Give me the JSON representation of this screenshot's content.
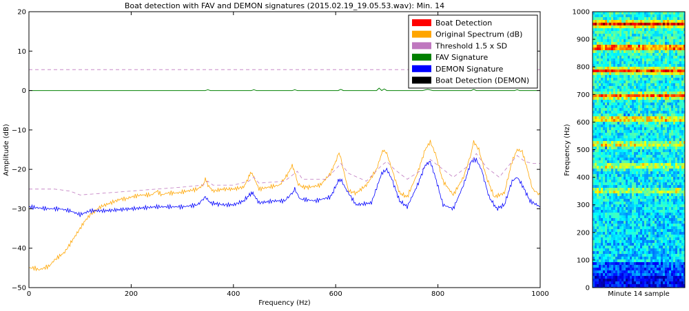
{
  "chart_data": [
    {
      "type": "line",
      "title": "Boat detection with FAV and DEMON signatures (2015.02.19_19.05.53.wav): Min. 14",
      "xlabel": "Frequency (Hz)",
      "ylabel": "Amplitude (dB)",
      "xlim": [
        0,
        1000
      ],
      "ylim": [
        -50,
        20
      ],
      "xticks": [
        0,
        200,
        400,
        600,
        800,
        1000
      ],
      "yticks": [
        -50,
        -40,
        -30,
        -20,
        -10,
        0,
        10,
        20
      ],
      "xtick_labels": [
        "0",
        "200",
        "400",
        "600",
        "800",
        "1000"
      ],
      "ytick_labels": [
        "−50",
        "−40",
        "−30",
        "−20",
        "−10",
        "0",
        "10",
        "20"
      ],
      "legend_position": "top-right",
      "grid": false,
      "legend": [
        {
          "label": "Boat Detection",
          "color": "#ff0000"
        },
        {
          "label": "Original Spectrum (dB)",
          "color": "#ffa500"
        },
        {
          "label": "Threshold 1.5 x SD",
          "color": "#bf77bf"
        },
        {
          "label": "FAV Signature",
          "color": "#008000"
        },
        {
          "label": "DEMON Signature",
          "color": "#0000ff"
        },
        {
          "label": "Boat Detection (DEMON)",
          "color": "#000000"
        }
      ],
      "series": [
        {
          "name": "Original Spectrum (dB)",
          "color": "#ffa500",
          "style": "solid",
          "x": [
            0,
            10,
            20,
            30,
            40,
            50,
            60,
            70,
            80,
            90,
            100,
            110,
            120,
            130,
            140,
            150,
            160,
            170,
            180,
            190,
            200,
            220,
            240,
            250,
            260,
            270,
            290,
            310,
            330,
            340,
            345,
            350,
            360,
            380,
            400,
            420,
            430,
            435,
            440,
            450,
            470,
            490,
            505,
            515,
            520,
            525,
            535,
            550,
            570,
            590,
            600,
            605,
            610,
            615,
            625,
            640,
            660,
            680,
            690,
            695,
            700,
            710,
            725,
            740,
            760,
            775,
            785,
            795,
            810,
            830,
            850,
            865,
            870,
            880,
            895,
            910,
            930,
            945,
            955,
            965,
            975,
            985,
            1000
          ],
          "y": [
            -45,
            -45,
            -45.5,
            -45,
            -44.5,
            -43,
            -42,
            -41,
            -39,
            -37,
            -35,
            -33,
            -31.5,
            -30.5,
            -29.5,
            -29,
            -28.5,
            -28,
            -27.5,
            -27.5,
            -27,
            -26.5,
            -26.5,
            -25.5,
            -26.5,
            -26,
            -26,
            -25.5,
            -25,
            -24,
            -22.5,
            -24,
            -25.5,
            -25,
            -25,
            -24.5,
            -22,
            -20.5,
            -22,
            -25,
            -24.5,
            -24,
            -21.5,
            -19,
            -20.5,
            -23.5,
            -24.5,
            -24.5,
            -24,
            -21,
            -18,
            -16,
            -17,
            -20,
            -25.5,
            -26,
            -24,
            -20,
            -16,
            -15,
            -16,
            -20,
            -26,
            -27,
            -21,
            -15,
            -13,
            -16,
            -23,
            -26.5,
            -22,
            -16,
            -13,
            -15,
            -22,
            -27,
            -26,
            -18,
            -15,
            -15.5,
            -20,
            -25,
            -26.5
          ]
        },
        {
          "name": "Threshold 1.5 x SD",
          "color": "#bf77bf",
          "style": "dashed",
          "x": [
            0,
            50,
            80,
            100,
            150,
            200,
            250,
            300,
            340,
            350,
            360,
            400,
            430,
            440,
            450,
            500,
            515,
            525,
            535,
            580,
            600,
            610,
            625,
            660,
            690,
            700,
            715,
            740,
            770,
            785,
            800,
            830,
            860,
            875,
            895,
            920,
            945,
            955,
            970,
            985,
            1000
          ],
          "y": [
            -25,
            -25,
            -25.5,
            -26.5,
            -26,
            -25.5,
            -25,
            -24.5,
            -24,
            -23,
            -24,
            -24,
            -23,
            -22,
            -23.5,
            -23,
            -21.5,
            -20.5,
            -22.5,
            -22.5,
            -20,
            -18.5,
            -21,
            -23,
            -19,
            -18,
            -20,
            -22.5,
            -20,
            -17.5,
            -19,
            -22,
            -19,
            -16,
            -19.5,
            -22,
            -18,
            -16.5,
            -18,
            -18.5,
            -18.5
          ]
        },
        {
          "name": "Threshold (upper)",
          "color": "#bf77bf",
          "style": "dashed",
          "x": [
            0,
            1000
          ],
          "y": [
            5.3,
            5.3
          ]
        },
        {
          "name": "FAV Signature",
          "color": "#008000",
          "style": "solid",
          "x": [
            0,
            100,
            250,
            345,
            350,
            355,
            435,
            440,
            445,
            515,
            520,
            525,
            605,
            610,
            615,
            680,
            685,
            690,
            695,
            700,
            770,
            780,
            790,
            865,
            870,
            875,
            950,
            955,
            960,
            1000
          ],
          "y": [
            0,
            0,
            0,
            0,
            0.2,
            0,
            0,
            0.2,
            0,
            0,
            0.2,
            0,
            0,
            0.3,
            0,
            0,
            0.6,
            0,
            0.4,
            0,
            0,
            0.3,
            0,
            0,
            0.3,
            0,
            0,
            0.2,
            0,
            0
          ]
        },
        {
          "name": "DEMON Signature",
          "color": "#0000ff",
          "style": "solid",
          "x": [
            0,
            20,
            40,
            60,
            80,
            90,
            100,
            110,
            120,
            150,
            200,
            250,
            300,
            330,
            345,
            355,
            380,
            400,
            420,
            435,
            440,
            450,
            480,
            500,
            515,
            520,
            530,
            560,
            590,
            605,
            610,
            620,
            640,
            670,
            690,
            700,
            710,
            725,
            740,
            760,
            775,
            785,
            795,
            810,
            830,
            850,
            865,
            875,
            885,
            900,
            915,
            930,
            945,
            955,
            965,
            980,
            1000
          ],
          "y": [
            -29.5,
            -29.8,
            -30,
            -30,
            -30.5,
            -31,
            -31.5,
            -31,
            -30.5,
            -30.5,
            -30,
            -29.5,
            -29.5,
            -29,
            -27,
            -28.5,
            -29,
            -29,
            -28,
            -26,
            -26.5,
            -28.5,
            -28,
            -28,
            -26,
            -25,
            -27.5,
            -28,
            -27,
            -23,
            -22.5,
            -25,
            -29,
            -28.5,
            -21,
            -20,
            -22.5,
            -28,
            -29.5,
            -24,
            -19,
            -18,
            -22,
            -29,
            -30,
            -24,
            -18,
            -17.5,
            -20,
            -27,
            -30,
            -29,
            -23,
            -22,
            -24,
            -28,
            -29.5
          ]
        }
      ]
    },
    {
      "type": "heatmap",
      "xlabel": "Minute 14 sample",
      "ylabel": "Frequency (Hz)",
      "ylim": [
        0,
        1000
      ],
      "yticks": [
        0,
        100,
        200,
        300,
        400,
        500,
        600,
        700,
        800,
        900,
        1000
      ],
      "ytick_labels": [
        "0",
        "100",
        "200",
        "300",
        "400",
        "500",
        "600",
        "700",
        "800",
        "900",
        "1000"
      ],
      "colormap": "jet",
      "bands": [
        {
          "freq": 955,
          "intensity": 0.95
        },
        {
          "freq": 870,
          "intensity": 0.95
        },
        {
          "freq": 785,
          "intensity": 0.9
        },
        {
          "freq": 695,
          "intensity": 0.8
        },
        {
          "freq": 610,
          "intensity": 0.7
        },
        {
          "freq": 520,
          "intensity": 0.55
        },
        {
          "freq": 440,
          "intensity": 0.5
        },
        {
          "freq": 350,
          "intensity": 0.45
        }
      ]
    }
  ]
}
